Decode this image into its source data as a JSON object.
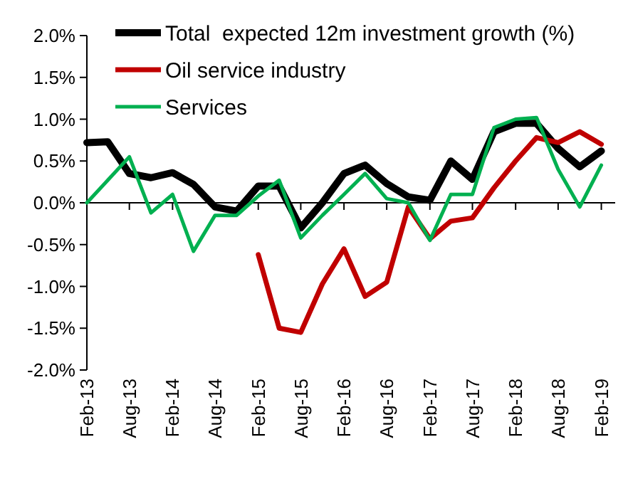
{
  "chart_data": {
    "type": "line",
    "x": [
      "2013-02",
      "2013-05",
      "2013-08",
      "2013-11",
      "2014-02",
      "2014-05",
      "2014-08",
      "2014-11",
      "2015-02",
      "2015-05",
      "2015-08",
      "2015-11",
      "2016-02",
      "2016-05",
      "2016-08",
      "2016-11",
      "2017-02",
      "2017-05",
      "2017-08",
      "2017-11",
      "2018-02",
      "2018-05",
      "2018-08",
      "2018-11",
      "2019-02"
    ],
    "series": [
      {
        "name": "Total  expected 12m investment growth (%)",
        "color": "#000000",
        "values": [
          0.72,
          0.73,
          0.35,
          0.3,
          0.36,
          0.22,
          -0.05,
          -0.1,
          0.2,
          0.2,
          -0.3,
          0.0,
          0.35,
          0.45,
          0.23,
          0.07,
          0.03,
          0.5,
          0.28,
          0.85,
          0.95,
          0.95,
          0.65,
          0.43,
          0.62
        ]
      },
      {
        "name": "Oil service industry",
        "color": "#c00000",
        "values": [
          null,
          null,
          null,
          null,
          null,
          null,
          null,
          null,
          -0.62,
          -1.5,
          -1.55,
          -0.97,
          -0.55,
          -1.12,
          -0.95,
          -0.05,
          -0.43,
          -0.22,
          -0.18,
          0.18,
          0.5,
          0.78,
          0.72,
          0.85,
          0.7
        ]
      },
      {
        "name": "Services",
        "color": "#00b050",
        "values": [
          0.0,
          0.27,
          0.55,
          -0.12,
          0.1,
          -0.58,
          -0.15,
          -0.15,
          0.08,
          0.27,
          -0.42,
          -0.15,
          0.1,
          0.35,
          0.05,
          0.0,
          -0.45,
          0.1,
          0.1,
          0.9,
          1.0,
          1.02,
          0.4,
          -0.05,
          0.45
        ]
      }
    ],
    "xlim": [
      "2013-02",
      "2019-04"
    ],
    "xticks": [
      {
        "value": "2013-02",
        "label": "Feb-13"
      },
      {
        "value": "2013-08",
        "label": "Aug-13"
      },
      {
        "value": "2014-02",
        "label": "Feb-14"
      },
      {
        "value": "2014-08",
        "label": "Aug-14"
      },
      {
        "value": "2015-02",
        "label": "Feb-15"
      },
      {
        "value": "2015-08",
        "label": "Aug-15"
      },
      {
        "value": "2016-02",
        "label": "Feb-16"
      },
      {
        "value": "2016-08",
        "label": "Aug-16"
      },
      {
        "value": "2017-02",
        "label": "Feb-17"
      },
      {
        "value": "2017-08",
        "label": "Aug-17"
      },
      {
        "value": "2018-02",
        "label": "Feb-18"
      },
      {
        "value": "2018-08",
        "label": "Aug-18"
      },
      {
        "value": "2019-02",
        "label": "Feb-19"
      }
    ],
    "ylim": [
      -2,
      2
    ],
    "yticks": [
      {
        "value": -2,
        "label": "-2.0%"
      },
      {
        "value": -1.5,
        "label": "-1.5%"
      },
      {
        "value": -1,
        "label": "-1.0%"
      },
      {
        "value": -0.5,
        "label": "-0.5%"
      },
      {
        "value": 0,
        "label": "0.0%"
      },
      {
        "value": 0.5,
        "label": "0.5%"
      },
      {
        "value": 1,
        "label": "1.0%"
      },
      {
        "value": 1.5,
        "label": "1.5%"
      },
      {
        "value": 2,
        "label": "2.0%"
      }
    ],
    "legend": "top left"
  }
}
